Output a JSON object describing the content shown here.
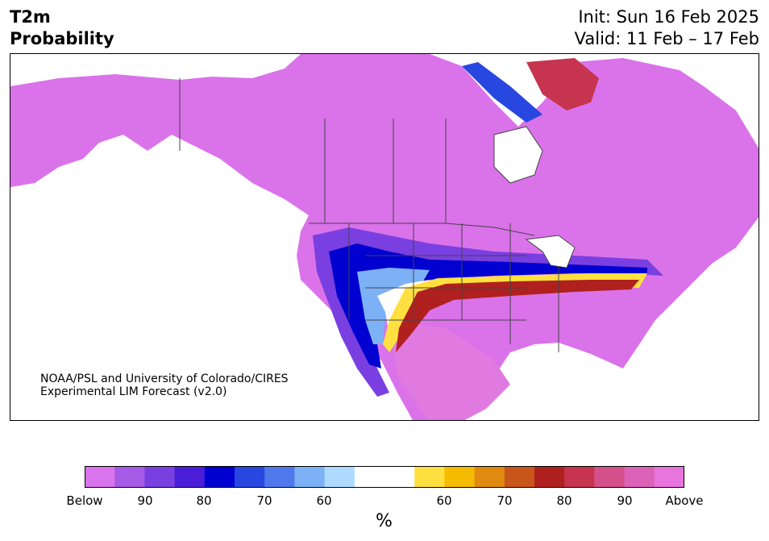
{
  "header": {
    "title_line1": "T2m",
    "title_line2": "Probability",
    "init_text": "Init: Sun 16 Feb 2025",
    "valid_text": "Valid: 11 Feb – 17 Feb"
  },
  "map": {
    "region": "North America",
    "credit_line1": "NOAA/PSL and University of Colorado/CIRES",
    "credit_line2": "Experimental LIM Forecast (v2.0)"
  },
  "colorbar": {
    "unit": "%",
    "below_colors": [
      "#d974ec",
      "#a65be6",
      "#7a3fe0",
      "#4a1ed9",
      "#0000d0",
      "#2747e0",
      "#4f78ec",
      "#7cb1f5",
      "#aedaff"
    ],
    "neutral_color": "#ffffff",
    "above_colors": [
      "#ffe040",
      "#f5bb00",
      "#e08a10",
      "#c8561a",
      "#b0201e",
      "#c63450",
      "#d4508a",
      "#dc62b8",
      "#e875de"
    ],
    "tick_labels": [
      "Below",
      "90",
      "80",
      "70",
      "60",
      "60",
      "70",
      "80",
      "90",
      "Above"
    ]
  }
}
